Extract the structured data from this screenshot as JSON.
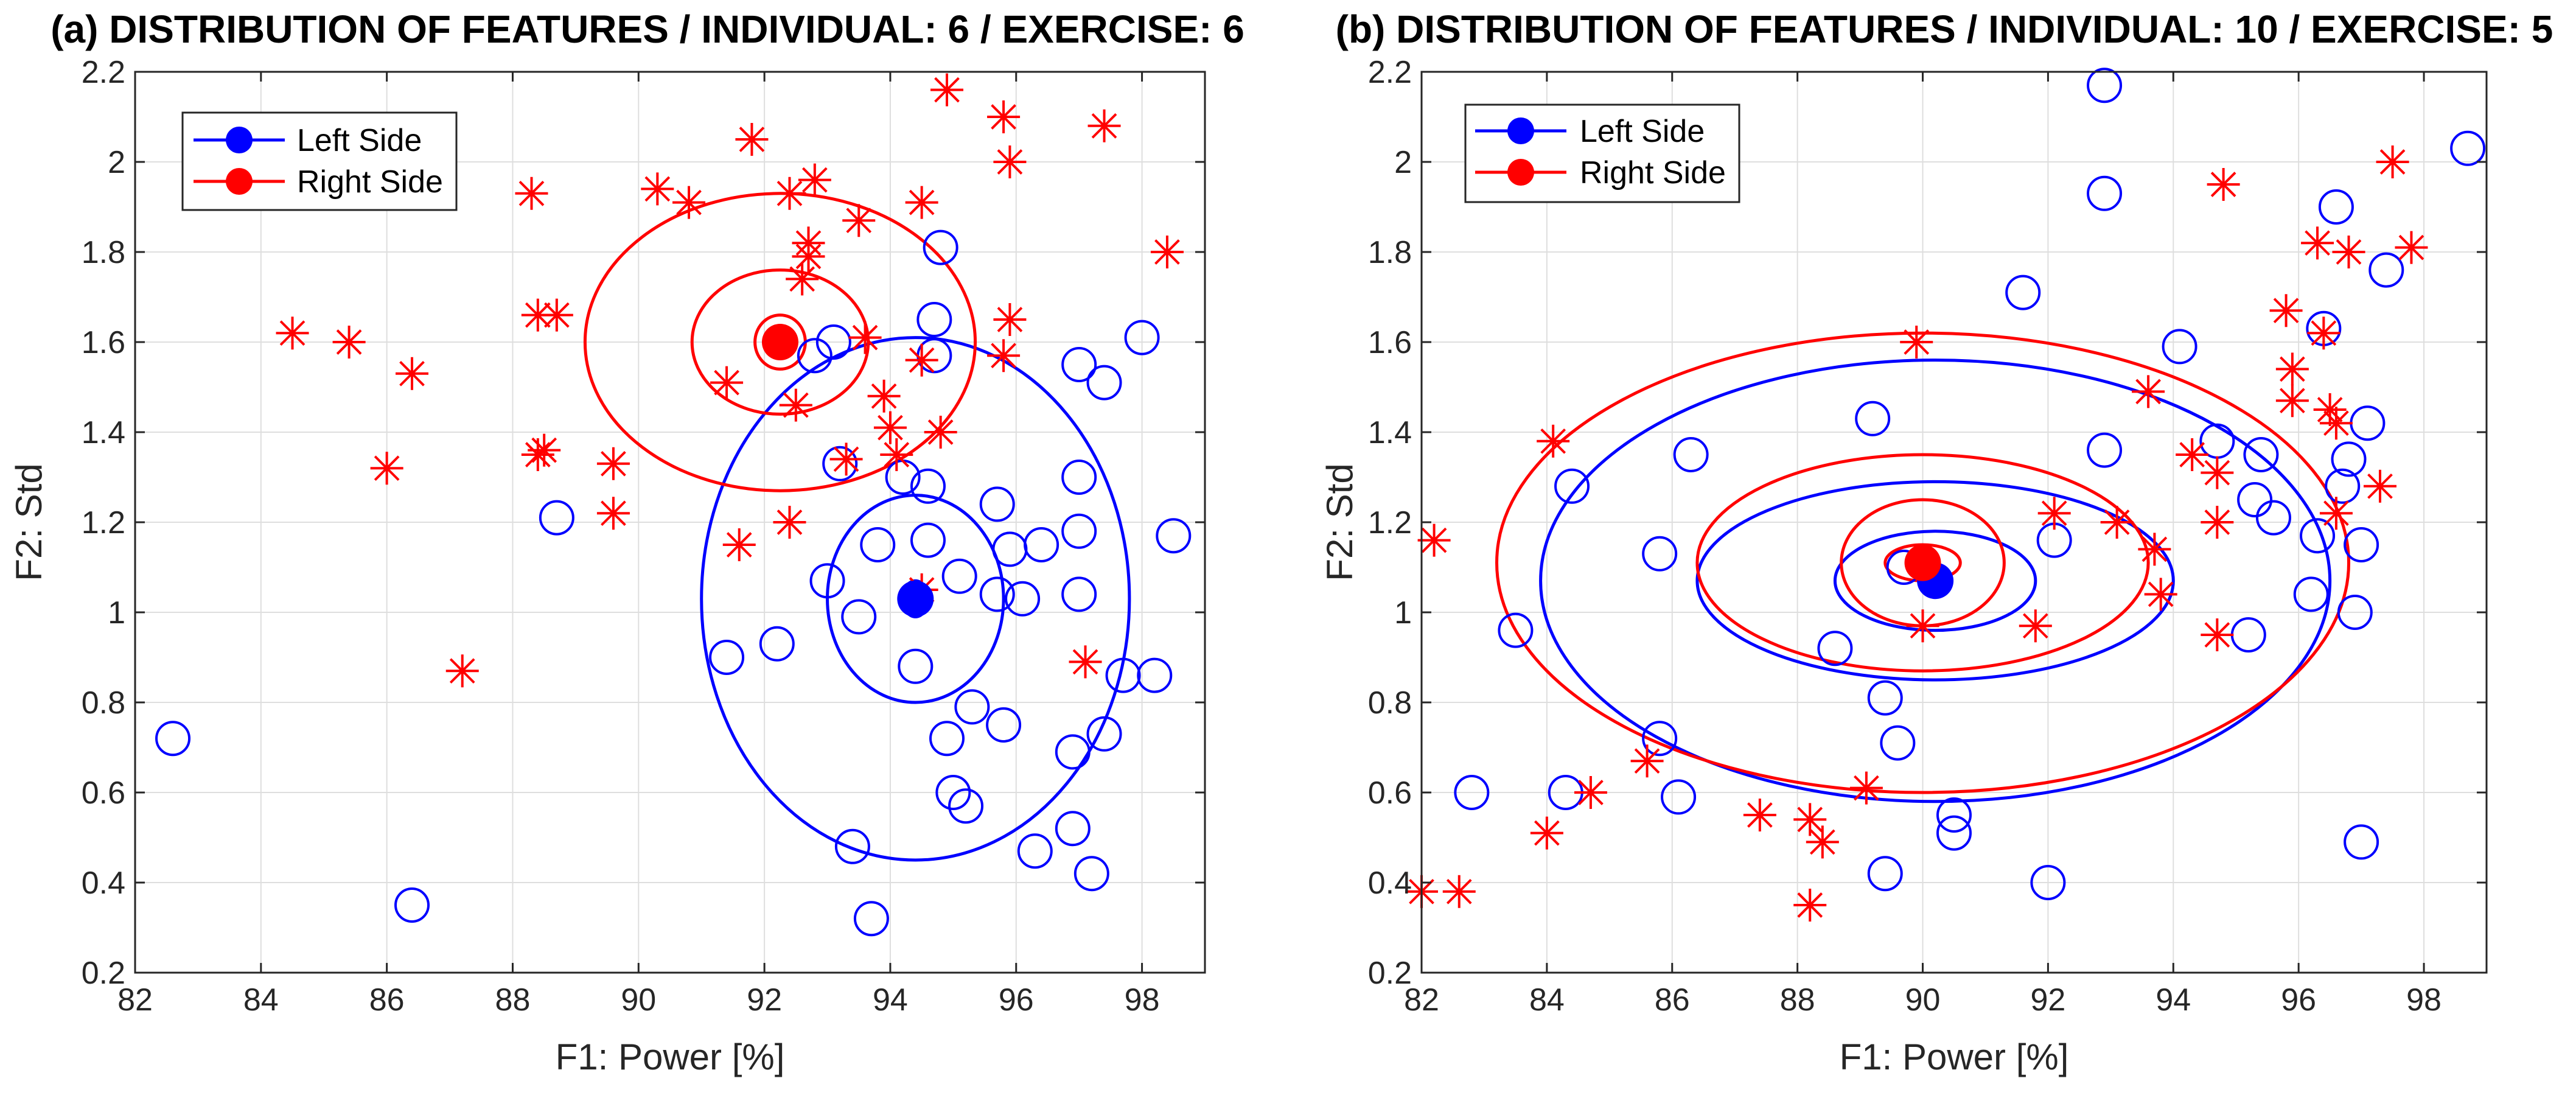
{
  "chart_data": [
    {
      "type": "scatter",
      "title": "(a) DISTRIBUTION OF FEATURES / INDIVIDUAL: 6 / EXERCISE: 6",
      "xlabel": "F1: Power [%]",
      "ylabel": "F2: Std",
      "xlim": [
        82,
        99
      ],
      "ylim": [
        0.2,
        2.2
      ],
      "xticks": [
        82,
        84,
        86,
        88,
        90,
        92,
        94,
        96,
        98
      ],
      "yticks": [
        0.2,
        0.4,
        0.6,
        0.8,
        1,
        1.2,
        1.4,
        1.6,
        1.8,
        2,
        2.2
      ],
      "xtick_labels": [
        "82",
        "84",
        "86",
        "88",
        "90",
        "92",
        "94",
        "96",
        "98"
      ],
      "ytick_labels": [
        "0.2",
        "0.4",
        "0.6",
        "0.8",
        "1",
        "1.2",
        "1.4",
        "1.6",
        "1.8",
        "2",
        "2.2"
      ],
      "grid": true,
      "legend_position": "top-left",
      "series": [
        {
          "name": "Left Side",
          "color": "#0000ff",
          "marker": "circle",
          "mean": [
            94.4,
            1.03
          ],
          "ellipses": [
            [
              0.2,
              0.04
            ],
            [
              1.4,
              0.23
            ],
            [
              3.4,
              0.58
            ]
          ],
          "points": [
            [
              82.6,
              0.72
            ],
            [
              86.4,
              0.35
            ],
            [
              88.7,
              1.21
            ],
            [
              91.4,
              0.9
            ],
            [
              92.2,
              0.93
            ],
            [
              93.0,
              1.07
            ],
            [
              93.2,
              1.33
            ],
            [
              93.4,
              0.48
            ],
            [
              93.5,
              0.99
            ],
            [
              93.7,
              0.32
            ],
            [
              93.8,
              1.15
            ],
            [
              94.2,
              1.3
            ],
            [
              94.4,
              0.88
            ],
            [
              94.6,
              1.16
            ],
            [
              94.6,
              1.28
            ],
            [
              94.7,
              1.57
            ],
            [
              94.7,
              1.65
            ],
            [
              94.8,
              1.81
            ],
            [
              94.9,
              0.72
            ],
            [
              95.0,
              0.6
            ],
            [
              95.1,
              1.08
            ],
            [
              95.2,
              0.57
            ],
            [
              95.3,
              0.79
            ],
            [
              95.7,
              1.24
            ],
            [
              95.7,
              1.04
            ],
            [
              95.8,
              0.75
            ],
            [
              95.9,
              1.14
            ],
            [
              96.1,
              1.03
            ],
            [
              96.3,
              0.47
            ],
            [
              96.4,
              1.15
            ],
            [
              96.9,
              0.69
            ],
            [
              96.9,
              0.52
            ],
            [
              97.0,
              1.55
            ],
            [
              97.0,
              1.3
            ],
            [
              97.0,
              1.18
            ],
            [
              97.0,
              1.04
            ],
            [
              97.2,
              0.42
            ],
            [
              97.4,
              1.51
            ],
            [
              97.4,
              0.73
            ],
            [
              97.7,
              0.86
            ],
            [
              98.0,
              1.61
            ],
            [
              98.2,
              0.86
            ],
            [
              98.5,
              1.17
            ],
            [
              92.8,
              1.57
            ],
            [
              93.1,
              1.6
            ]
          ]
        },
        {
          "name": "Right Side",
          "color": "#ff0000",
          "marker": "asterisk",
          "mean": [
            92.25,
            1.6
          ],
          "ellipses": [
            [
              0.4,
              0.06
            ],
            [
              1.4,
              0.16
            ],
            [
              3.1,
              0.33
            ]
          ],
          "points": [
            [
              84.5,
              1.62
            ],
            [
              85.4,
              1.6
            ],
            [
              86.0,
              1.32
            ],
            [
              86.4,
              1.53
            ],
            [
              87.2,
              0.87
            ],
            [
              88.3,
              1.93
            ],
            [
              88.4,
              1.66
            ],
            [
              88.4,
              1.35
            ],
            [
              88.5,
              1.36
            ],
            [
              88.7,
              1.66
            ],
            [
              89.6,
              1.33
            ],
            [
              89.6,
              1.22
            ],
            [
              90.3,
              1.94
            ],
            [
              90.8,
              1.91
            ],
            [
              91.4,
              1.51
            ],
            [
              91.6,
              1.15
            ],
            [
              91.8,
              2.05
            ],
            [
              92.4,
              1.93
            ],
            [
              92.4,
              1.2
            ],
            [
              92.5,
              1.46
            ],
            [
              92.6,
              1.74
            ],
            [
              92.7,
              1.79
            ],
            [
              92.7,
              1.82
            ],
            [
              92.8,
              1.96
            ],
            [
              93.3,
              1.34
            ],
            [
              93.5,
              1.87
            ],
            [
              93.6,
              1.61
            ],
            [
              93.9,
              1.48
            ],
            [
              94.0,
              1.41
            ],
            [
              94.1,
              1.35
            ],
            [
              94.5,
              1.91
            ],
            [
              94.5,
              1.56
            ],
            [
              94.8,
              1.4
            ],
            [
              94.9,
              2.16
            ],
            [
              95.8,
              2.1
            ],
            [
              95.8,
              1.57
            ],
            [
              95.9,
              2.0
            ],
            [
              95.9,
              1.65
            ],
            [
              97.1,
              0.89
            ],
            [
              97.4,
              2.08
            ],
            [
              98.4,
              1.8
            ],
            [
              94.5,
              1.05
            ]
          ]
        }
      ],
      "legend": [
        {
          "label": "Left Side",
          "color": "#0000ff"
        },
        {
          "label": "Right Side",
          "color": "#ff0000"
        }
      ]
    },
    {
      "type": "scatter",
      "title": "(b) DISTRIBUTION OF FEATURES / INDIVIDUAL: 10 / EXERCISE: 5",
      "xlabel": "F1: Power [%]",
      "ylabel": "F2: Std",
      "xlim": [
        82,
        99
      ],
      "ylim": [
        0.2,
        2.2
      ],
      "xticks": [
        82,
        84,
        86,
        88,
        90,
        92,
        94,
        96,
        98
      ],
      "yticks": [
        0.2,
        0.4,
        0.6,
        0.8,
        1,
        1.2,
        1.4,
        1.6,
        1.8,
        2,
        2.2
      ],
      "xtick_labels": [
        "82",
        "84",
        "86",
        "88",
        "90",
        "92",
        "94",
        "96",
        "98"
      ],
      "ytick_labels": [
        "0.2",
        "0.4",
        "0.6",
        "0.8",
        "1",
        "1.2",
        "1.4",
        "1.6",
        "1.8",
        "2",
        "2.2"
      ],
      "grid": true,
      "legend_position": "top-left",
      "series": [
        {
          "name": "Left Side",
          "color": "#0000ff",
          "marker": "circle",
          "mean": [
            90.2,
            1.07
          ],
          "ellipses": [
            [
              0.2,
              0.02
            ],
            [
              1.6,
              0.11
            ],
            [
              3.8,
              0.22
            ],
            [
              6.3,
              0.49
            ]
          ],
          "points": [
            [
              82.8,
              0.6
            ],
            [
              83.5,
              0.96
            ],
            [
              84.3,
              0.6
            ],
            [
              84.4,
              1.28
            ],
            [
              85.8,
              0.72
            ],
            [
              85.8,
              1.13
            ],
            [
              86.1,
              0.59
            ],
            [
              86.3,
              1.35
            ],
            [
              88.6,
              0.92
            ],
            [
              89.2,
              1.43
            ],
            [
              89.4,
              0.81
            ],
            [
              89.4,
              0.42
            ],
            [
              89.6,
              0.71
            ],
            [
              89.7,
              1.1
            ],
            [
              90.5,
              0.55
            ],
            [
              90.5,
              0.51
            ],
            [
              91.6,
              1.71
            ],
            [
              92.0,
              0.4
            ],
            [
              92.1,
              1.16
            ],
            [
              92.9,
              1.93
            ],
            [
              92.9,
              1.36
            ],
            [
              92.9,
              2.17
            ],
            [
              94.1,
              1.59
            ],
            [
              94.7,
              1.38
            ],
            [
              95.2,
              0.95
            ],
            [
              95.3,
              1.25
            ],
            [
              95.4,
              1.35
            ],
            [
              95.6,
              1.21
            ],
            [
              96.2,
              1.04
            ],
            [
              96.3,
              1.17
            ],
            [
              96.4,
              1.63
            ],
            [
              96.6,
              1.9
            ],
            [
              96.7,
              1.28
            ],
            [
              96.8,
              1.34
            ],
            [
              96.9,
              1.0
            ],
            [
              97.0,
              0.49
            ],
            [
              97.0,
              1.15
            ],
            [
              97.1,
              1.42
            ],
            [
              97.4,
              1.76
            ],
            [
              98.7,
              2.03
            ]
          ]
        },
        {
          "name": "Right Side",
          "color": "#ff0000",
          "marker": "asterisk",
          "mean": [
            90.0,
            1.11
          ],
          "ellipses": [
            [
              0.6,
              0.04
            ],
            [
              1.3,
              0.14
            ],
            [
              3.6,
              0.24
            ],
            [
              6.8,
              0.51
            ]
          ],
          "points": [
            [
              82.0,
              0.38
            ],
            [
              82.2,
              1.16
            ],
            [
              82.6,
              0.38
            ],
            [
              84.0,
              0.51
            ],
            [
              84.1,
              1.38
            ],
            [
              84.7,
              0.6
            ],
            [
              85.6,
              0.67
            ],
            [
              87.4,
              0.55
            ],
            [
              88.2,
              0.35
            ],
            [
              88.2,
              0.54
            ],
            [
              88.4,
              0.49
            ],
            [
              89.1,
              0.61
            ],
            [
              89.9,
              1.6
            ],
            [
              90.0,
              0.97
            ],
            [
              91.8,
              0.97
            ],
            [
              92.1,
              1.22
            ],
            [
              93.7,
              1.14
            ],
            [
              93.8,
              1.04
            ],
            [
              94.3,
              1.35
            ],
            [
              94.7,
              1.31
            ],
            [
              94.7,
              1.2
            ],
            [
              94.7,
              0.95
            ],
            [
              94.8,
              1.95
            ],
            [
              95.8,
              1.67
            ],
            [
              95.9,
              1.54
            ],
            [
              95.9,
              1.47
            ],
            [
              96.3,
              1.82
            ],
            [
              96.4,
              1.62
            ],
            [
              96.5,
              1.45
            ],
            [
              96.6,
              1.22
            ],
            [
              96.6,
              1.42
            ],
            [
              96.8,
              1.8
            ],
            [
              97.3,
              1.28
            ],
            [
              97.5,
              2.0
            ],
            [
              97.8,
              1.81
            ],
            [
              93.6,
              1.49
            ],
            [
              93.1,
              1.2
            ]
          ]
        }
      ],
      "legend": [
        {
          "label": "Left Side",
          "color": "#0000ff"
        },
        {
          "label": "Right Side",
          "color": "#ff0000"
        }
      ]
    }
  ]
}
